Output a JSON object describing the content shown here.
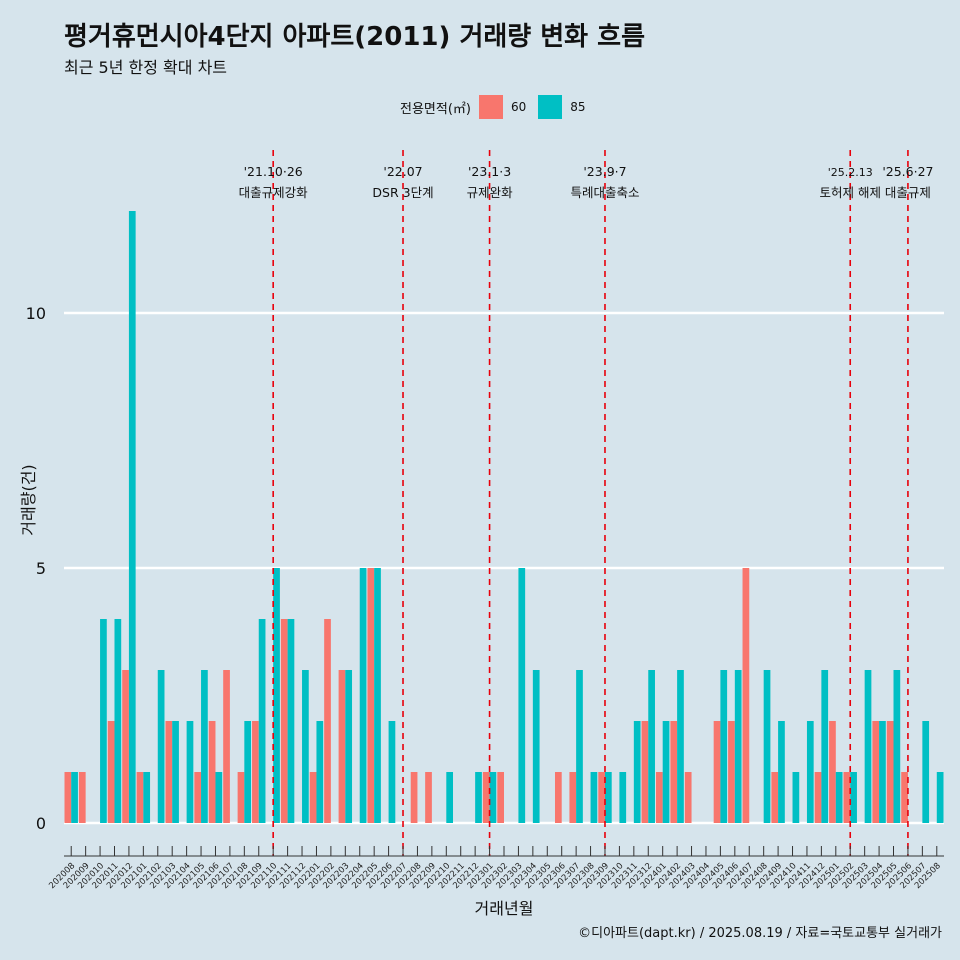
{
  "title": "평거휴먼시아4단지 아파트(2011) 거래량 변화 흐름",
  "subtitle": "최근 5년 한정 확대 차트",
  "caption": "©디아파트(dapt.kr) / 2025.08.19 / 자료=국토교통부 실거래가",
  "legend": {
    "title": "전용면적(㎡)",
    "items": [
      {
        "label": "60",
        "color": "#f8766d"
      },
      {
        "label": "85",
        "color": "#00bfc4"
      }
    ]
  },
  "chart_data": {
    "type": "bar",
    "xlabel": "거래년월",
    "ylabel": "거래량(건)",
    "ylim": [
      0,
      12
    ],
    "yticks": [
      0,
      5,
      10
    ],
    "categories": [
      "202008",
      "202009",
      "202010",
      "202011",
      "202012",
      "202101",
      "202102",
      "202103",
      "202104",
      "202105",
      "202106",
      "202107",
      "202108",
      "202109",
      "202110",
      "202111",
      "202112",
      "202201",
      "202202",
      "202203",
      "202204",
      "202205",
      "202206",
      "202207",
      "202208",
      "202209",
      "202210",
      "202211",
      "202212",
      "202301",
      "202302",
      "202303",
      "202304",
      "202305",
      "202306",
      "202307",
      "202308",
      "202309",
      "202310",
      "202311",
      "202312",
      "202401",
      "202402",
      "202403",
      "202404",
      "202405",
      "202406",
      "202407",
      "202408",
      "202409",
      "202410",
      "202411",
      "202412",
      "202501",
      "202502",
      "202503",
      "202504",
      "202505",
      "202506",
      "202507",
      "202508"
    ],
    "series": [
      {
        "name": "60",
        "color": "#f8766d",
        "values": [
          1,
          1,
          0,
          2,
          3,
          1,
          0,
          2,
          0,
          1,
          2,
          3,
          1,
          2,
          0,
          4,
          0,
          1,
          4,
          3,
          0,
          5,
          0,
          0,
          1,
          1,
          0,
          0,
          0,
          1,
          1,
          0,
          0,
          0,
          1,
          1,
          0,
          1,
          0,
          0,
          2,
          1,
          2,
          1,
          0,
          2,
          2,
          5,
          0,
          1,
          0,
          0,
          1,
          2,
          1,
          0,
          2,
          2,
          1,
          0,
          0
        ]
      },
      {
        "name": "85",
        "color": "#00bfc4",
        "values": [
          1,
          0,
          4,
          4,
          12,
          1,
          3,
          2,
          2,
          3,
          1,
          0,
          2,
          4,
          5,
          4,
          3,
          2,
          0,
          3,
          5,
          5,
          2,
          0,
          0,
          0,
          1,
          0,
          1,
          1,
          0,
          5,
          3,
          0,
          0,
          3,
          1,
          1,
          1,
          2,
          3,
          2,
          3,
          0,
          0,
          3,
          3,
          0,
          3,
          2,
          1,
          2,
          3,
          1,
          1,
          3,
          2,
          3,
          0,
          2,
          1
        ]
      }
    ],
    "events": [
      {
        "category": "202110",
        "label": "'21.10·26",
        "desc": "대출규제강화"
      },
      {
        "category": "202207",
        "label": "'22.07",
        "desc": "DSR 3단계"
      },
      {
        "category": "202301",
        "label": "'23.1·3",
        "desc": "규제완화"
      },
      {
        "category": "202309",
        "label": "'23.9·7",
        "desc": "특례대출축소"
      },
      {
        "category": "202502",
        "label": "'25.2.13",
        "desc": "토허제 해제"
      },
      {
        "category": "202506",
        "label": "'25.6·27",
        "desc": "대출규제"
      }
    ],
    "grid": "y-major",
    "legend_position": "top"
  }
}
